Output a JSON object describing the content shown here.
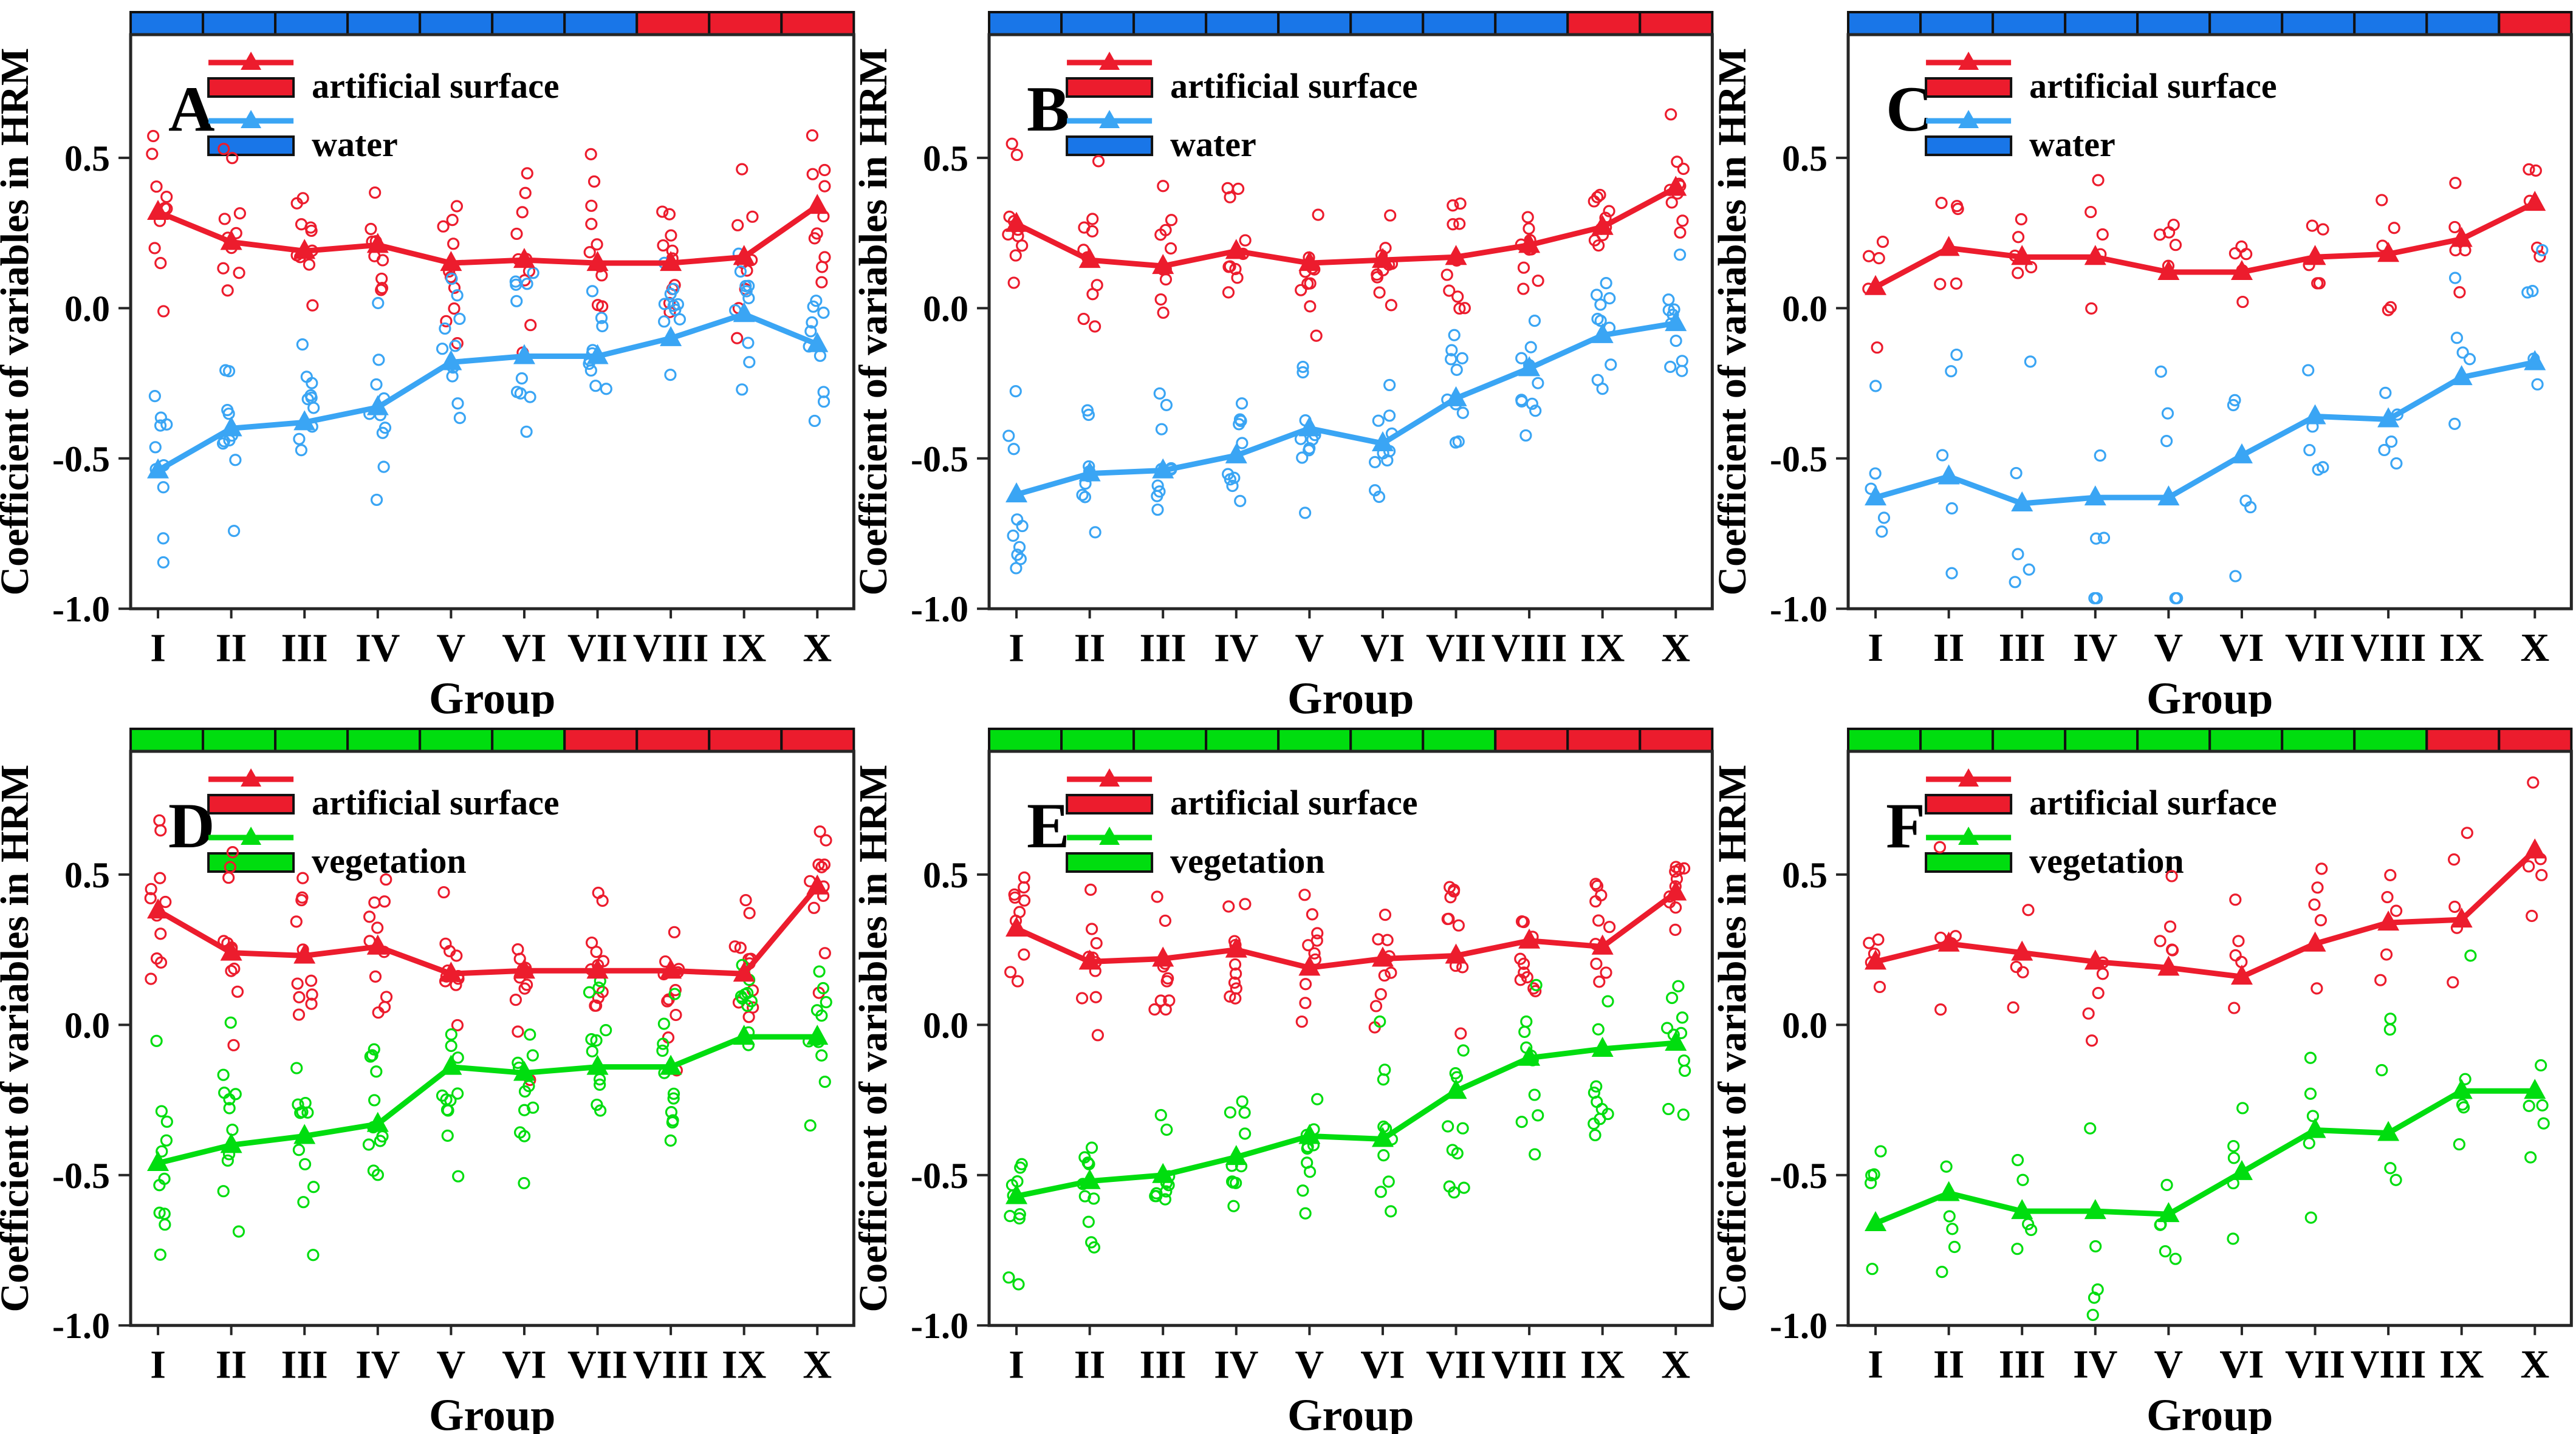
{
  "figure": {
    "ylabel": "Coefficient of variables in HRM",
    "xlabel": "Group",
    "x_categories": [
      "I",
      "II",
      "III",
      "IV",
      "V",
      "VI",
      "VII",
      "VIII",
      "IX",
      "X"
    ],
    "ytick_values": [
      0.5,
      0.0,
      -0.5,
      -1.0
    ],
    "ytick_labels": [
      "0.5",
      "0.0",
      "-0.5",
      "-1.0"
    ],
    "ylim": [
      -1.0,
      0.91
    ],
    "grid": "off",
    "legend_position": "top-center-inside",
    "colors": {
      "red": "#ec1c2d",
      "blue": "#1976e8",
      "water": "#3aa5f4",
      "green": "#00dd0f",
      "axis": "#262626",
      "bar_border": "#111111"
    }
  },
  "chart_data": [
    {
      "type": "line+scatter",
      "label": "A",
      "top_bar": [
        "blue",
        "blue",
        "blue",
        "blue",
        "blue",
        "blue",
        "blue",
        "red",
        "red",
        "red"
      ],
      "series": [
        {
          "name": "artificial surface",
          "line_color": "red",
          "swatch_color": "red",
          "means": [
            0.32,
            0.22,
            0.19,
            0.21,
            0.15,
            0.16,
            0.15,
            0.15,
            0.17,
            0.34
          ],
          "scatter": {
            "n": 10,
            "sd": 0.14
          }
        },
        {
          "name": "water",
          "line_color": "water",
          "swatch_color": "blue",
          "means": [
            -0.54,
            -0.4,
            -0.38,
            -0.33,
            -0.18,
            -0.16,
            -0.16,
            -0.1,
            -0.02,
            -0.12
          ],
          "scatter": {
            "n": 10,
            "sd": 0.15
          }
        }
      ]
    },
    {
      "type": "line+scatter",
      "label": "B",
      "top_bar": [
        "blue",
        "blue",
        "blue",
        "blue",
        "blue",
        "blue",
        "blue",
        "blue",
        "red",
        "red"
      ],
      "series": [
        {
          "name": "artificial surface",
          "line_color": "red",
          "swatch_color": "red",
          "means": [
            0.28,
            0.16,
            0.14,
            0.19,
            0.15,
            0.16,
            0.17,
            0.21,
            0.27,
            0.4
          ],
          "scatter": {
            "n": 10,
            "sd": 0.12
          }
        },
        {
          "name": "water",
          "line_color": "water",
          "swatch_color": "blue",
          "means": [
            -0.62,
            -0.55,
            -0.54,
            -0.49,
            -0.4,
            -0.45,
            -0.3,
            -0.2,
            -0.09,
            -0.05
          ],
          "scatter": {
            "n": 10,
            "sd": 0.13
          }
        }
      ]
    },
    {
      "type": "line+scatter",
      "label": "C",
      "top_bar": [
        "blue",
        "blue",
        "blue",
        "blue",
        "blue",
        "blue",
        "blue",
        "blue",
        "blue",
        "red"
      ],
      "series": [
        {
          "name": "artificial surface",
          "line_color": "red",
          "swatch_color": "red",
          "means": [
            0.07,
            0.2,
            0.17,
            0.17,
            0.12,
            0.12,
            0.17,
            0.18,
            0.23,
            0.35
          ],
          "scatter": {
            "n": 5,
            "sd": 0.13
          }
        },
        {
          "name": "water",
          "line_color": "water",
          "swatch_color": "blue",
          "means": [
            -0.63,
            -0.56,
            -0.65,
            -0.63,
            -0.63,
            -0.49,
            -0.36,
            -0.37,
            -0.23,
            -0.18
          ],
          "scatter": {
            "n": 5,
            "sd": 0.21
          }
        }
      ]
    },
    {
      "type": "line+scatter",
      "label": "D",
      "top_bar": [
        "green",
        "green",
        "green",
        "green",
        "green",
        "green",
        "red",
        "red",
        "red",
        "red"
      ],
      "series": [
        {
          "name": "artificial surface",
          "line_color": "red",
          "swatch_color": "red",
          "means": [
            0.38,
            0.24,
            0.23,
            0.26,
            0.17,
            0.18,
            0.18,
            0.18,
            0.17,
            0.46
          ],
          "scatter": {
            "n": 11,
            "sd": 0.15
          }
        },
        {
          "name": "vegetation",
          "line_color": "green",
          "swatch_color": "green",
          "means": [
            -0.46,
            -0.4,
            -0.37,
            -0.33,
            -0.14,
            -0.16,
            -0.14,
            -0.14,
            -0.04,
            -0.04
          ],
          "scatter": {
            "n": 11,
            "sd": 0.16
          }
        }
      ]
    },
    {
      "type": "line+scatter",
      "label": "E",
      "top_bar": [
        "green",
        "green",
        "green",
        "green",
        "green",
        "green",
        "green",
        "red",
        "red",
        "red"
      ],
      "series": [
        {
          "name": "artificial surface",
          "line_color": "red",
          "swatch_color": "red",
          "means": [
            0.32,
            0.21,
            0.22,
            0.25,
            0.19,
            0.22,
            0.23,
            0.28,
            0.26,
            0.44
          ],
          "scatter": {
            "n": 10,
            "sd": 0.12
          }
        },
        {
          "name": "vegetation",
          "line_color": "green",
          "swatch_color": "green",
          "means": [
            -0.57,
            -0.52,
            -0.5,
            -0.44,
            -0.37,
            -0.38,
            -0.22,
            -0.11,
            -0.08,
            -0.06
          ],
          "scatter": {
            "n": 10,
            "sd": 0.14
          }
        }
      ]
    },
    {
      "type": "line+scatter",
      "label": "F",
      "top_bar": [
        "green",
        "green",
        "green",
        "green",
        "green",
        "green",
        "green",
        "green",
        "red",
        "red"
      ],
      "series": [
        {
          "name": "artificial surface",
          "line_color": "red",
          "swatch_color": "red",
          "means": [
            0.21,
            0.27,
            0.24,
            0.21,
            0.19,
            0.16,
            0.27,
            0.34,
            0.35,
            0.58
          ],
          "scatter": {
            "n": 5,
            "sd": 0.17
          }
        },
        {
          "name": "vegetation",
          "line_color": "green",
          "swatch_color": "green",
          "means": [
            -0.66,
            -0.56,
            -0.62,
            -0.62,
            -0.63,
            -0.49,
            -0.35,
            -0.36,
            -0.22,
            -0.22
          ],
          "scatter": {
            "n": 5,
            "sd": 0.19
          }
        }
      ]
    }
  ]
}
